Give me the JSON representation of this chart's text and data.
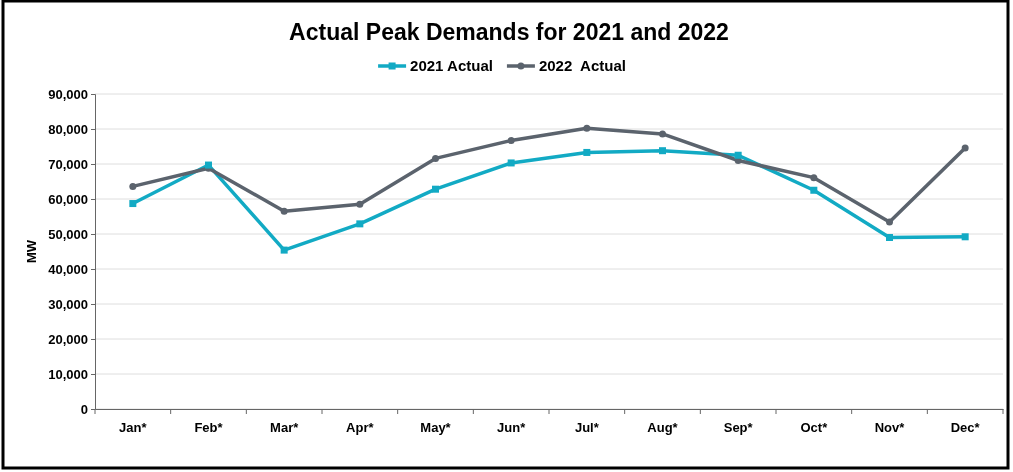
{
  "chart_data": {
    "type": "line",
    "title": "Actual Peak Demands for 2021 and 2022",
    "ylabel": "MW",
    "categories": [
      "Jan*",
      "Feb*",
      "Mar*",
      "Apr*",
      "May*",
      "Jun*",
      "Jul*",
      "Aug*",
      "Sep*",
      "Oct*",
      "Nov*",
      "Dec*"
    ],
    "series": [
      {
        "name": "2021 Actual",
        "color": "#12aac4",
        "marker": "square",
        "values": [
          58700,
          69700,
          45400,
          52900,
          62800,
          70300,
          73300,
          73800,
          72500,
          62500,
          49000,
          49200
        ]
      },
      {
        "name": "2022  Actual",
        "color": "#5b636d",
        "marker": "circle",
        "values": [
          63600,
          68800,
          56500,
          58500,
          71600,
          76700,
          80200,
          78600,
          71000,
          66100,
          53400,
          74600
        ]
      }
    ],
    "ylim": [
      0,
      90000
    ],
    "yticks": [
      {
        "value": 0,
        "label": "0"
      },
      {
        "value": 10000,
        "label": "10,000"
      },
      {
        "value": 20000,
        "label": "20,000"
      },
      {
        "value": 30000,
        "label": "30,000"
      },
      {
        "value": 40000,
        "label": "40,000"
      },
      {
        "value": 50000,
        "label": "50,000"
      },
      {
        "value": 60000,
        "label": "60,000"
      },
      {
        "value": 70000,
        "label": "70,000"
      },
      {
        "value": 80000,
        "label": "80,000"
      },
      {
        "value": 90000,
        "label": "90,000"
      }
    ],
    "grid": "y",
    "legend": "top",
    "line_style": "solid"
  }
}
